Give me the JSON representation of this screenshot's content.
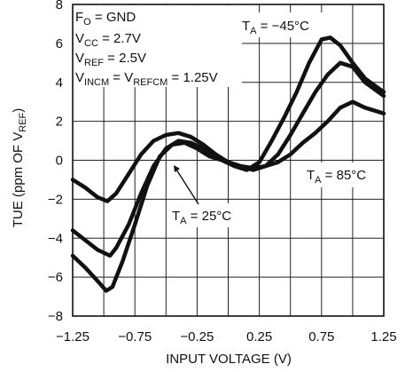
{
  "chart_data": {
    "type": "line",
    "title": "",
    "xlabel": "INPUT VOLTAGE (V)",
    "ylabel": {
      "main": "TUE (ppm OF V",
      "sub": "REF",
      "end": ")"
    },
    "xlim": [
      -1.25,
      1.25
    ],
    "ylim": [
      -8,
      8
    ],
    "x_ticks": [
      "-1.25",
      "-0.75",
      "-0.25",
      "0.25",
      "0.75",
      "1.25"
    ],
    "y_ticks": [
      "-8",
      "-6",
      "-4",
      "-2",
      "0",
      "2",
      "4",
      "6",
      "8"
    ],
    "grid": true,
    "conditions": [
      {
        "main": "F",
        "sub": "O",
        "rest": " = GND"
      },
      {
        "main": "V",
        "sub": "CC",
        "rest": " = 2.7V"
      },
      {
        "main": "V",
        "sub": "REF",
        "rest": " = 2.5V"
      },
      {
        "main": "V",
        "sub": "INCM",
        "rest": " = V",
        "sub2": "REFCM",
        "rest2": " = 1.25V"
      }
    ],
    "series": [
      {
        "name": {
          "main": "T",
          "sub": "A",
          "rest": " = −45°C"
        },
        "x": [
          -1.25,
          -1.15,
          -1.05,
          -0.98,
          -0.93,
          -0.85,
          -0.75,
          -0.65,
          -0.55,
          -0.45,
          -0.35,
          -0.25,
          -0.15,
          -0.05,
          0.05,
          0.15,
          0.25,
          0.35,
          0.45,
          0.55,
          0.65,
          0.75,
          0.82,
          0.9,
          1.0,
          1.1,
          1.25
        ],
        "y": [
          -4.9,
          -5.5,
          -6.2,
          -6.7,
          -6.5,
          -5.2,
          -3.3,
          -1.3,
          0.2,
          0.8,
          0.9,
          0.6,
          0.2,
          0.0,
          -0.3,
          -0.5,
          -0.1,
          1.0,
          2.2,
          3.5,
          5.0,
          6.2,
          6.3,
          5.9,
          5.0,
          4.2,
          3.5
        ]
      },
      {
        "name": {
          "main": "T",
          "sub": "A",
          "rest": " = 25°C"
        },
        "x": [
          -1.25,
          -1.15,
          -1.05,
          -0.95,
          -0.9,
          -0.8,
          -0.7,
          -0.6,
          -0.5,
          -0.4,
          -0.3,
          -0.2,
          -0.1,
          0.0,
          0.1,
          0.2,
          0.3,
          0.4,
          0.5,
          0.6,
          0.7,
          0.8,
          0.9,
          1.0,
          1.1,
          1.25
        ],
        "y": [
          -3.6,
          -4.1,
          -4.6,
          -4.9,
          -4.5,
          -3.3,
          -1.7,
          -0.3,
          0.6,
          1.0,
          0.9,
          0.6,
          0.2,
          -0.1,
          -0.3,
          -0.5,
          -0.3,
          0.3,
          1.3,
          2.4,
          3.5,
          4.4,
          5.0,
          4.8,
          4.0,
          3.3
        ]
      },
      {
        "name": {
          "main": "T",
          "sub": "A",
          "rest": " = 85°C"
        },
        "x": [
          -1.25,
          -1.15,
          -1.05,
          -0.97,
          -0.9,
          -0.8,
          -0.7,
          -0.6,
          -0.5,
          -0.4,
          -0.3,
          -0.2,
          -0.1,
          0.0,
          0.1,
          0.2,
          0.3,
          0.4,
          0.5,
          0.6,
          0.7,
          0.8,
          0.9,
          1.0,
          1.1,
          1.25
        ],
        "y": [
          -1.0,
          -1.4,
          -1.9,
          -2.1,
          -1.7,
          -0.7,
          0.3,
          1.0,
          1.3,
          1.4,
          1.2,
          0.8,
          0.3,
          -0.1,
          -0.3,
          -0.4,
          -0.3,
          -0.1,
          0.3,
          0.9,
          1.4,
          2.0,
          2.7,
          3.0,
          2.7,
          2.4
        ]
      }
    ]
  }
}
